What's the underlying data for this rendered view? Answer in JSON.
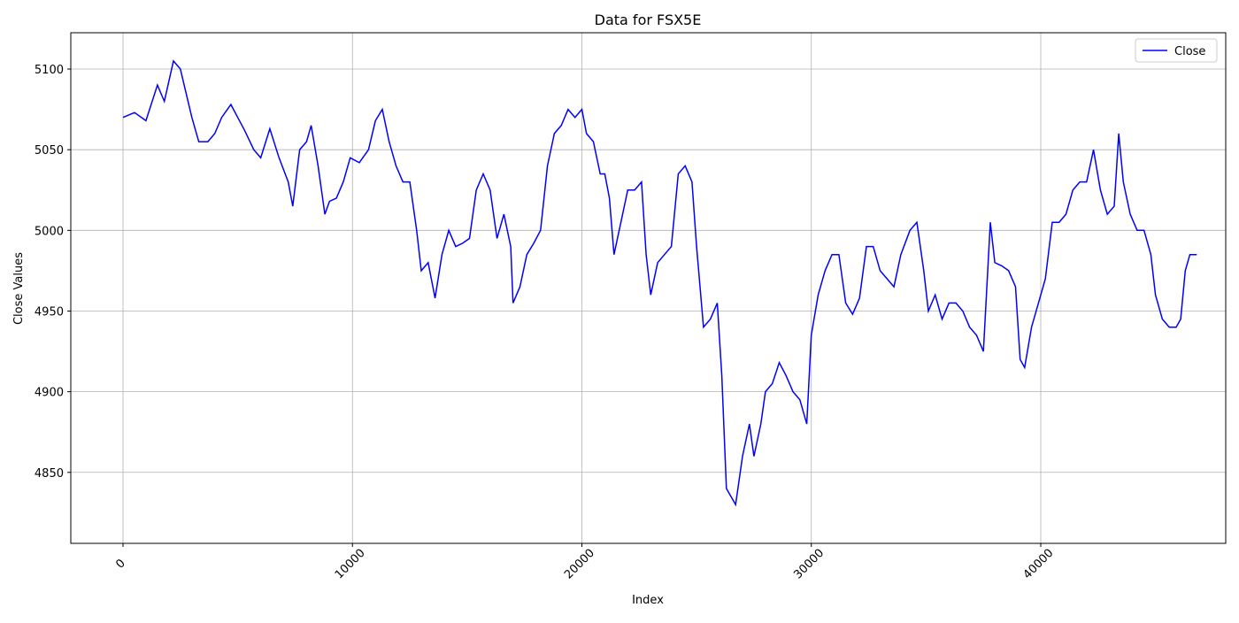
{
  "chart_data": {
    "type": "line",
    "title": "Data for FSX5E",
    "x_label": "Index",
    "y_label": "Close Values",
    "x": [
      0,
      500,
      1000,
      1500,
      1800,
      2200,
      2500,
      2700,
      3000,
      3300,
      3700,
      4000,
      4300,
      4700,
      5000,
      5300,
      5700,
      6000,
      6400,
      6800,
      7200,
      7400,
      7700,
      8000,
      8200,
      8500,
      8800,
      9000,
      9300,
      9600,
      9900,
      10300,
      10700,
      11000,
      11300,
      11600,
      11900,
      12200,
      12500,
      12800,
      13000,
      13300,
      13600,
      13900,
      14200,
      14500,
      14800,
      15100,
      15400,
      15700,
      16000,
      16300,
      16600,
      16900,
      17000,
      17300,
      17600,
      17900,
      18200,
      18500,
      18800,
      19100,
      19400,
      19700,
      20000,
      20200,
      20500,
      20800,
      21000,
      21200,
      21400,
      21700,
      22000,
      22300,
      22600,
      22800,
      23000,
      23300,
      23600,
      23900,
      24200,
      24500,
      24800,
      25000,
      25300,
      25600,
      25900,
      26100,
      26300,
      26500,
      26700,
      27000,
      27300,
      27500,
      27800,
      28000,
      28300,
      28600,
      28900,
      29200,
      29500,
      29800,
      30000,
      30300,
      30600,
      30900,
      31200,
      31500,
      31800,
      32100,
      32400,
      32700,
      33000,
      33300,
      33600,
      33900,
      34300,
      34600,
      34900,
      35100,
      35400,
      35700,
      36000,
      36300,
      36600,
      36900,
      37200,
      37500,
      37800,
      38000,
      38300,
      38600,
      38900,
      39100,
      39300,
      39600,
      39900,
      40200,
      40500,
      40800,
      41100,
      41400,
      41700,
      42000,
      42300,
      42600,
      42900,
      43200,
      43400,
      43600,
      43900,
      44200,
      44500,
      44800,
      45000,
      45300,
      45600,
      45900,
      46100,
      46300,
      46500,
      46800
    ],
    "series": [
      {
        "name": "Close",
        "color": "#0000ff",
        "values": [
          5070,
          5073,
          5068,
          5090,
          5080,
          5105,
          5100,
          5088,
          5070,
          5055,
          5055,
          5060,
          5070,
          5078,
          5070,
          5062,
          5050,
          5045,
          5063,
          5045,
          5030,
          5015,
          5050,
          5055,
          5065,
          5040,
          5010,
          5018,
          5020,
          5030,
          5045,
          5042,
          5050,
          5068,
          5075,
          5055,
          5040,
          5030,
          5030,
          5000,
          4975,
          4980,
          4958,
          4985,
          5000,
          4990,
          4992,
          4995,
          5025,
          5035,
          5025,
          4995,
          5010,
          4990,
          4955,
          4965,
          4985,
          4992,
          5000,
          5040,
          5060,
          5065,
          5075,
          5070,
          5075,
          5060,
          5055,
          5035,
          5035,
          5020,
          4985,
          5005,
          5025,
          5025,
          5030,
          4985,
          4960,
          4980,
          4985,
          4990,
          5035,
          5040,
          5030,
          4990,
          4940,
          4945,
          4955,
          4910,
          4840,
          4835,
          4830,
          4860,
          4880,
          4860,
          4880,
          4900,
          4905,
          4918,
          4910,
          4900,
          4895,
          4880,
          4935,
          4960,
          4975,
          4985,
          4985,
          4955,
          4948,
          4958,
          4990,
          4990,
          4975,
          4970,
          4965,
          4985,
          5000,
          5005,
          4975,
          4950,
          4960,
          4945,
          4955,
          4955,
          4950,
          4940,
          4935,
          4925,
          5005,
          4980,
          4978,
          4975,
          4965,
          4920,
          4915,
          4940,
          4955,
          4970,
          5005,
          5005,
          5010,
          5025,
          5030,
          5030,
          5050,
          5025,
          5010,
          5015,
          5060,
          5030,
          5010,
          5000,
          5000,
          4985,
          4960,
          4945,
          4940,
          4940,
          4945,
          4975,
          4985,
          4985
        ]
      }
    ],
    "xlim": [
      -2276,
      48062
    ],
    "ylim": [
      4806,
      5122.5
    ],
    "xticks": [
      0,
      10000,
      20000,
      30000,
      40000
    ],
    "yticks": [
      4850,
      4900,
      4950,
      5000,
      5050,
      5100
    ],
    "grid": true,
    "legend": "upper right"
  }
}
